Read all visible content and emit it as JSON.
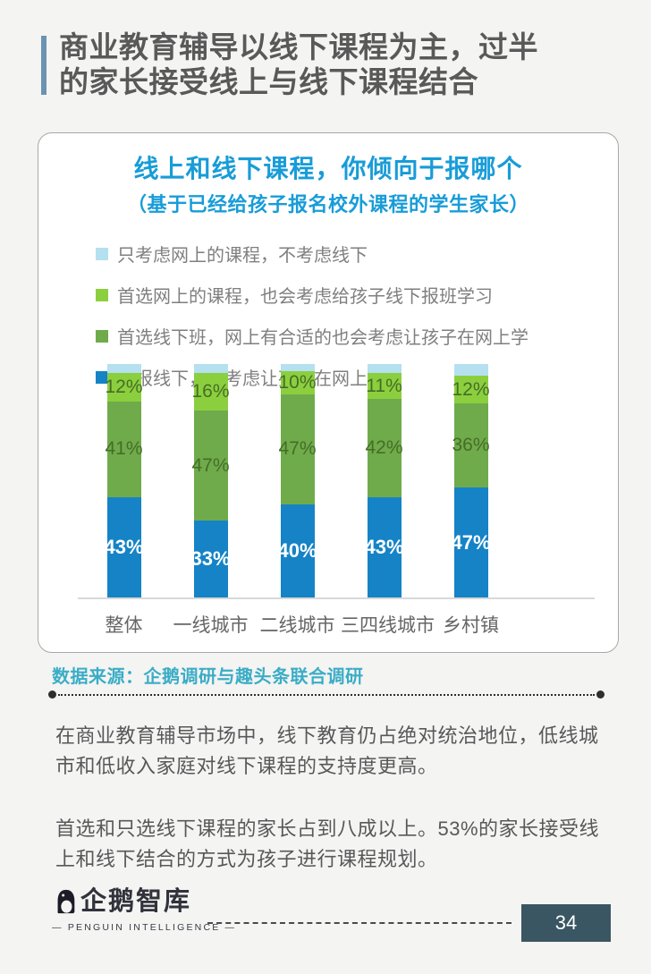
{
  "page": {
    "title_lines": [
      "商业教育辅导以线下课程为主，过半",
      "的家长接受线上与线下课程结合"
    ]
  },
  "chart_card": {
    "title": "线上和线下课程，你倾向于报哪个",
    "subtitle": "（基于已经给孩子报名校外课程的学生家长）"
  },
  "chart_data": {
    "type": "bar",
    "subtype": "stacked-vertical",
    "title": "线上和线下课程，你倾向于报哪个",
    "subtitle": "（基于已经给孩子报名校外课程的学生家长）",
    "categories": [
      "整体",
      "一线城市",
      "二线城市",
      "三四线城市",
      "乡村镇"
    ],
    "series": [
      {
        "name": "只考虑网上的课程，不考虑线下",
        "color": "#b5e0f0",
        "values": [
          4,
          4,
          3,
          4,
          5
        ],
        "labels_shown": false,
        "label_color": "#456d27",
        "label_bold": false
      },
      {
        "name": "首选网上的课程，也会考虑给孩子线下报班学习",
        "color": "#8ccf3e",
        "values": [
          12,
          16,
          10,
          11,
          12
        ],
        "labels_shown": true,
        "label_color": "#456d27",
        "label_bold": false
      },
      {
        "name": "首选线下班，网上有合适的也会考虑让孩子在网上学",
        "color": "#6fab4b",
        "values": [
          41,
          47,
          47,
          42,
          36
        ],
        "labels_shown": true,
        "label_color": "#456d27",
        "label_bold": false
      },
      {
        "name": "只报线下，不考虑让孩子在网上学习",
        "color": "#1583c6",
        "values": [
          43,
          33,
          40,
          43,
          47
        ],
        "labels_shown": true,
        "label_color": "#ffffff",
        "label_bold": true
      }
    ],
    "ylim": [
      0,
      100
    ],
    "unit": "%",
    "grid": false,
    "legend_position": "top-left"
  },
  "source": {
    "label": "数据来源：企鹅调研与趣头条联合调研"
  },
  "paragraphs": [
    "在商业教育辅导市场中，线下教育仍占绝对统治地位，低线城市和低收入家庭对线下课程的支持度更高。",
    "首选和只选线下课程的家长占到八成以上。53%的家长接受线上和线下结合的方式为孩子进行课程规划。"
  ],
  "footer": {
    "logo_text": "企鹅智库",
    "logo_subtext": "— PENGUIN INTELLIGENCE —",
    "page_number": "34"
  },
  "colors": {
    "accent_bar": "#6a93b0",
    "chart_title_blue": "#189cd8",
    "source_teal": "#3badc6",
    "page_number_bg": "#3b5663",
    "title_gray": "#595959",
    "body_gray": "#58585a"
  }
}
